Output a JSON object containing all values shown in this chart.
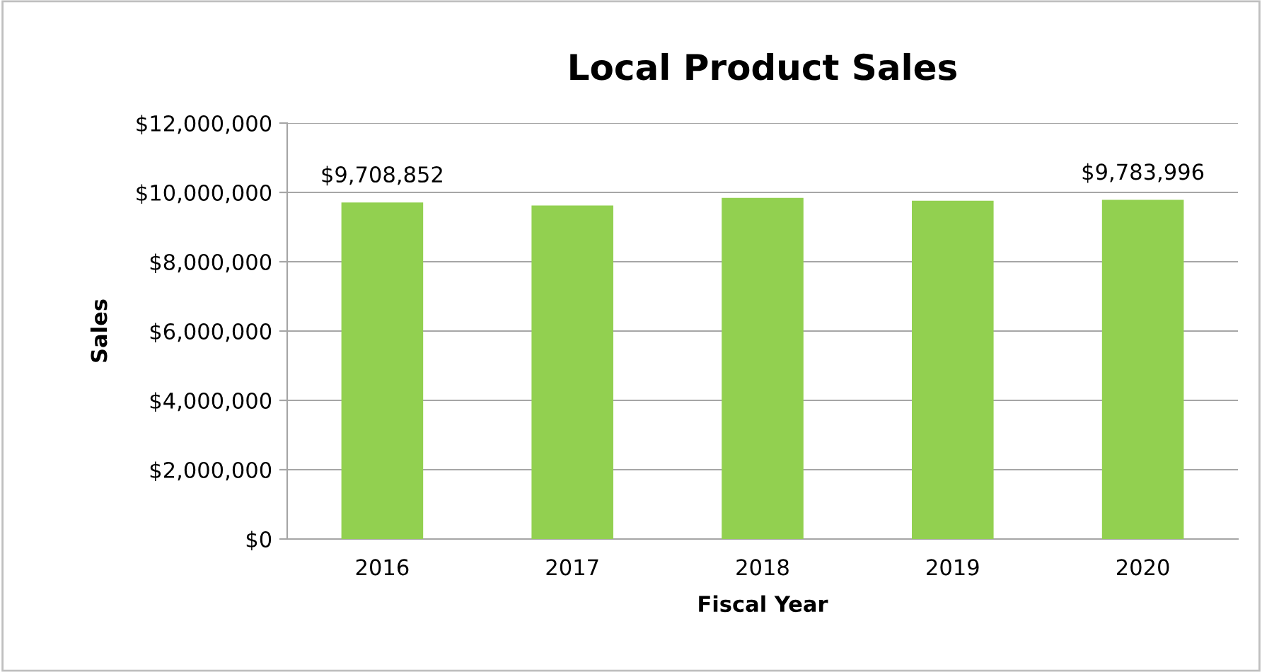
{
  "chart_data": {
    "type": "bar",
    "title": "Local Product Sales",
    "xlabel": "Fiscal Year",
    "ylabel": "Sales",
    "categories": [
      "2016",
      "2017",
      "2018",
      "2019",
      "2020"
    ],
    "series": [
      {
        "color": "#92d050",
        "values": [
          9708852,
          9620000,
          9840000,
          9760000,
          9783996
        ],
        "value_labels": [
          "$9,708,852",
          null,
          null,
          null,
          "$9,783,996"
        ]
      }
    ],
    "ylim": [
      0,
      12000000
    ],
    "yticks": [
      {
        "value": 0,
        "label": "$0"
      },
      {
        "value": 2000000,
        "label": "$2,000,000"
      },
      {
        "value": 4000000,
        "label": "$4,000,000"
      },
      {
        "value": 6000000,
        "label": "$6,000,000"
      },
      {
        "value": 8000000,
        "label": "$8,000,000"
      },
      {
        "value": 10000000,
        "label": "$10,000,000"
      },
      {
        "value": 12000000,
        "label": "$12,000,000"
      }
    ],
    "grid": "y",
    "legend": false
  }
}
